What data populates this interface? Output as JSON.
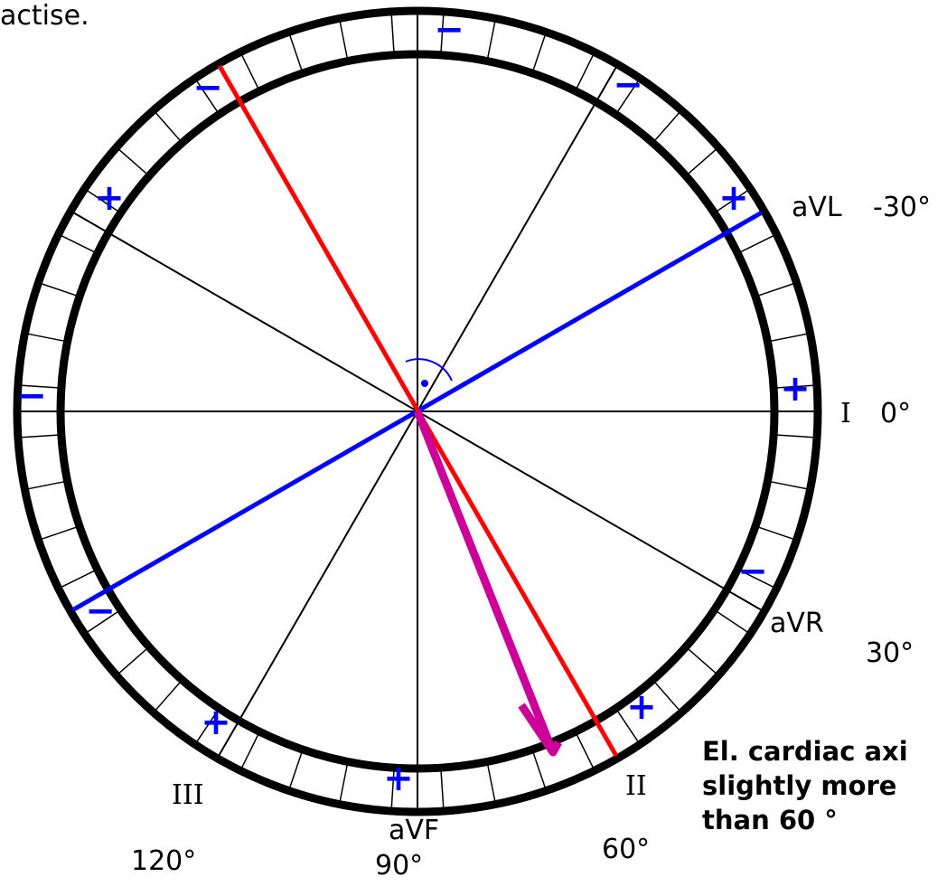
{
  "header": {
    "partial_text": "actise."
  },
  "leads": [
    {
      "name": "I",
      "angle": "0°"
    },
    {
      "name": "aVL",
      "angle": "-30°"
    },
    {
      "name": "aVR",
      "angle": "30°"
    },
    {
      "name": "II",
      "angle": "60°"
    },
    {
      "name": "aVF",
      "angle": "90°"
    },
    {
      "name": "III",
      "angle": "120°"
    }
  ],
  "signs": {
    "plus": "+",
    "minus": "−"
  },
  "caption": {
    "line1": "El. cardiac axi",
    "line2": "slightly more",
    "line3": "than 60 °"
  },
  "colors": {
    "ring": "#000000",
    "spokes": "#000000",
    "axis_line_blue": "#0000ff",
    "axis_line_red": "#ff0000",
    "axis_arrow": "#cc0099",
    "signs": "#0000ff",
    "background": "#ffffff"
  },
  "cardiac_axis_degrees": 65
}
